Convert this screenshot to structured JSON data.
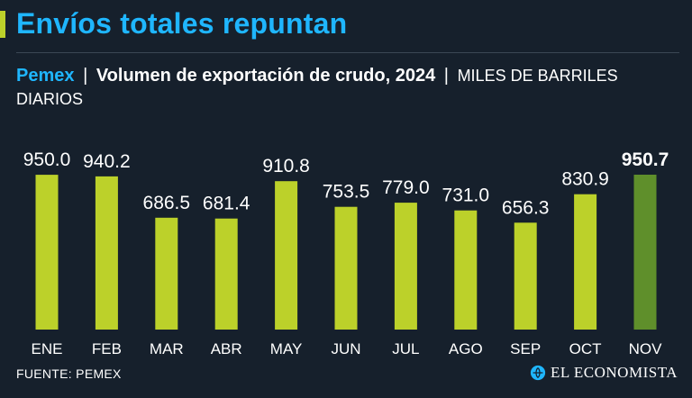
{
  "headline": "Envíos totales repuntan",
  "subtitle": {
    "brand": "Pemex",
    "separator": "|",
    "main": "Volumen de exportación de crudo, 2024",
    "units": "MILES DE BARRILES DIARIOS"
  },
  "source": "FUENTE: PEMEX",
  "logo": {
    "text": "EL ECONOMISTA",
    "icon": "el-economista-logo-icon"
  },
  "colors": {
    "background": "#16202c",
    "headline": "#1fb6ff",
    "bar": "#bcd12a",
    "bar_highlight": "#5f8f2b",
    "text": "#ffffff"
  },
  "chart_data": {
    "type": "bar",
    "title": "Volumen de exportación de crudo, 2024",
    "ylabel": "Miles de barriles diarios",
    "xlabel": "",
    "categories": [
      "ENE",
      "FEB",
      "MAR",
      "ABR",
      "MAY",
      "JUN",
      "JUL",
      "AGO",
      "SEP",
      "OCT",
      "NOV"
    ],
    "values": [
      950.0,
      940.2,
      686.5,
      681.4,
      910.8,
      753.5,
      779.0,
      731.0,
      656.3,
      830.9,
      950.7
    ],
    "labels": [
      "950.0",
      "940.2",
      "686.5",
      "681.4",
      "910.8",
      "753.5",
      "779.0",
      "731.0",
      "656.3",
      "830.9",
      "950.7"
    ],
    "highlight_index": 10,
    "ylim": [
      0,
      950.7
    ],
    "grid": false
  }
}
